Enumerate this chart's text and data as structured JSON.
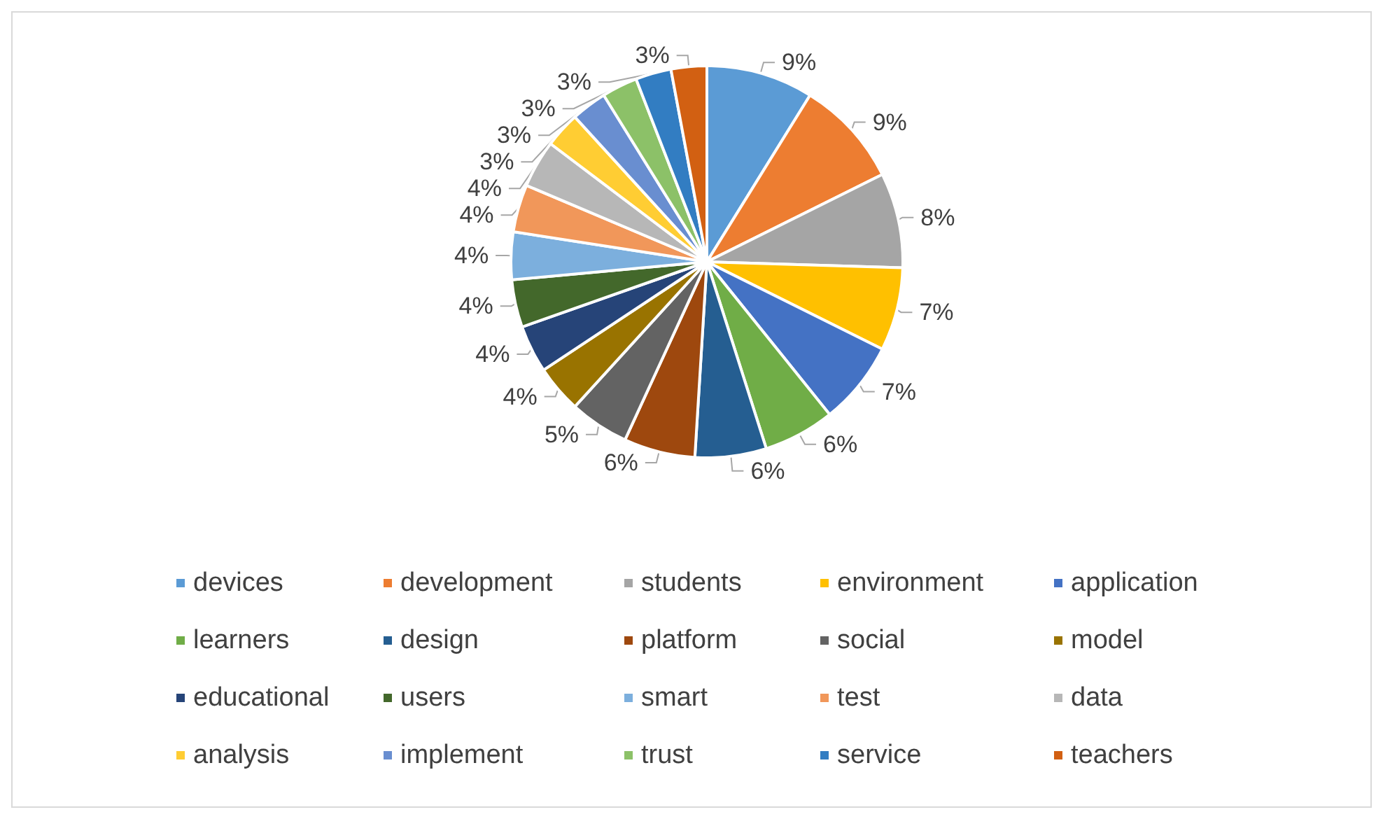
{
  "chart_data": {
    "type": "pie",
    "categories": [
      "devices",
      "development",
      "students",
      "environment",
      "application",
      "learners",
      "design",
      "platform",
      "social",
      "model",
      "educational",
      "users",
      "smart",
      "test",
      "data",
      "analysis",
      "implement",
      "trust",
      "service",
      "teachers"
    ],
    "values": [
      9,
      9,
      8,
      7,
      7,
      6,
      6,
      6,
      5,
      4,
      4,
      4,
      4,
      4,
      4,
      3,
      3,
      3,
      3,
      3
    ],
    "colors": [
      "#5b9bd5",
      "#ed7d31",
      "#a5a5a5",
      "#ffc000",
      "#4472c4",
      "#70ad47",
      "#255e91",
      "#9e480e",
      "#636363",
      "#997300",
      "#264478",
      "#43682b",
      "#7cafdd",
      "#f1975a",
      "#b7b7b7",
      "#ffcd33",
      "#698ed0",
      "#8cc168",
      "#327dc2",
      "#d26012"
    ],
    "value_labels": [
      "9%",
      "9%",
      "8%",
      "7%",
      "7%",
      "6%",
      "6%",
      "6%",
      "5%",
      "4%",
      "4%",
      "4%",
      "4%",
      "4%",
      "4%",
      "3%",
      "3%",
      "3%",
      "3%",
      "3%"
    ],
    "legend": "bottom"
  }
}
